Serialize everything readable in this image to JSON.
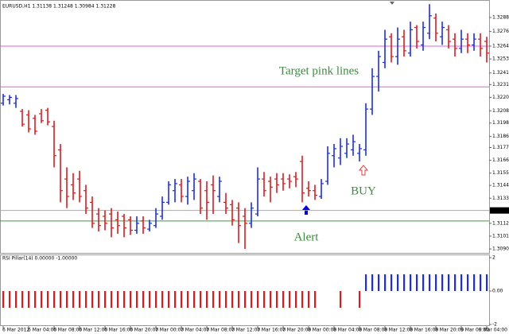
{
  "chart_data": [
    {
      "type": "ohlc",
      "title": "EURUSD,H1 1.31138 1.31248 1.30984 1.31228",
      "categories": [
        "6 Mar 2012",
        null,
        null,
        null,
        "6 Mar 04:00",
        null,
        null,
        null,
        "6 Mar 08:00",
        null,
        null,
        null,
        "6 Mar 12:00",
        null,
        null,
        null,
        "6 Mar 16:00",
        null,
        null,
        null,
        "6 Mar 20:00",
        null,
        null,
        null,
        "7 Mar 00:00",
        null,
        null,
        null,
        "7 Mar 04:00",
        null,
        null,
        null,
        "7 Mar 08:00",
        null,
        null,
        null,
        "7 Mar 12:00",
        null,
        null,
        null,
        "7 Mar 16:00",
        null,
        null,
        null,
        "7 Mar 20:00",
        null,
        null,
        null,
        "8 Mar 00:00",
        null,
        null,
        null,
        "8 Mar 04:00",
        null,
        null,
        null,
        "8 Mar 08:00",
        null,
        null,
        null,
        "8 Mar 12:00",
        null,
        null,
        null,
        "8 Mar 16:00",
        null,
        null,
        null,
        "8 Mar 20:00",
        null,
        null,
        null,
        "9 Mar 00:00",
        null,
        null,
        null,
        "9 Mar 04:00"
      ],
      "ohlc": [
        [
          1.3215,
          1.3223,
          1.3213,
          1.3221
        ],
        [
          1.3218,
          1.3222,
          1.3214,
          1.322
        ],
        [
          1.3215,
          1.3222,
          1.3211,
          1.3219
        ],
        [
          1.3208,
          1.321,
          1.3195,
          1.3197
        ],
        [
          1.3205,
          1.3209,
          1.319,
          1.3193
        ],
        [
          1.3202,
          1.3205,
          1.3188,
          1.3191
        ],
        [
          1.3206,
          1.321,
          1.3198,
          1.32
        ],
        [
          1.3209,
          1.3211,
          1.3196,
          1.3199
        ],
        [
          1.3195,
          1.32,
          1.316,
          1.317
        ],
        [
          1.3175,
          1.318,
          1.313,
          1.314
        ],
        [
          1.315,
          1.316,
          1.3125,
          1.3135
        ],
        [
          1.3145,
          1.3155,
          1.3132,
          1.3138
        ],
        [
          1.315,
          1.3157,
          1.313,
          1.3135
        ],
        [
          1.314,
          1.3145,
          1.312,
          1.3125
        ],
        [
          1.313,
          1.3135,
          1.3108,
          1.3112
        ],
        [
          1.312,
          1.3125,
          1.3105,
          1.311
        ],
        [
          1.3118,
          1.3123,
          1.3106,
          1.3112
        ],
        [
          1.312,
          1.3125,
          1.31,
          1.3108
        ],
        [
          1.3115,
          1.3122,
          1.3103,
          1.311
        ],
        [
          1.3118,
          1.312,
          1.31,
          1.3108
        ],
        [
          1.3115,
          1.3118,
          1.3102,
          1.3106
        ],
        [
          1.3106,
          1.3118,
          1.3103,
          1.3112
        ],
        [
          1.3114,
          1.3118,
          1.3103,
          1.3108
        ],
        [
          1.3107,
          1.3115,
          1.3105,
          1.3112
        ],
        [
          1.311,
          1.3125,
          1.3108,
          1.312
        ],
        [
          1.3118,
          1.3135,
          1.3115,
          1.313
        ],
        [
          1.313,
          1.3148,
          1.3128,
          1.3145
        ],
        [
          1.314,
          1.315,
          1.313,
          1.3146
        ],
        [
          1.3145,
          1.315,
          1.313,
          1.3135
        ],
        [
          1.3135,
          1.3152,
          1.3128,
          1.3148
        ],
        [
          1.314,
          1.3155,
          1.3132,
          1.315
        ],
        [
          1.3148,
          1.315,
          1.312,
          1.3125
        ],
        [
          1.314,
          1.3148,
          1.3115,
          1.313
        ],
        [
          1.3145,
          1.3153,
          1.312,
          1.314
        ],
        [
          1.3135,
          1.3152,
          1.313,
          1.3148
        ],
        [
          1.313,
          1.3138,
          1.312,
          1.3125
        ],
        [
          1.3128,
          1.3132,
          1.311,
          1.3115
        ],
        [
          1.3125,
          1.313,
          1.3095,
          1.311
        ],
        [
          1.3118,
          1.3125,
          1.309,
          1.3112
        ],
        [
          1.3112,
          1.313,
          1.3108,
          1.3125
        ],
        [
          1.312,
          1.316,
          1.3118,
          1.315
        ],
        [
          1.315,
          1.3156,
          1.3135,
          1.314
        ],
        [
          1.3148,
          1.3152,
          1.313,
          1.3143
        ],
        [
          1.315,
          1.3155,
          1.3138,
          1.3145
        ],
        [
          1.315,
          1.3155,
          1.314,
          1.3146
        ],
        [
          1.315,
          1.3154,
          1.3142,
          1.3148
        ],
        [
          1.3152,
          1.3156,
          1.3143,
          1.315
        ],
        [
          1.3165,
          1.317,
          1.313,
          1.3138
        ],
        [
          1.3142,
          1.3148,
          1.3135,
          1.314
        ],
        [
          1.314,
          1.3145,
          1.3132,
          1.3136
        ],
        [
          1.3135,
          1.315,
          1.3133,
          1.3146
        ],
        [
          1.3148,
          1.3178,
          1.3145,
          1.3172
        ],
        [
          1.317,
          1.318,
          1.316,
          1.3176
        ],
        [
          1.3168,
          1.3185,
          1.3162,
          1.3178
        ],
        [
          1.3172,
          1.3185,
          1.3168,
          1.318
        ],
        [
          1.3175,
          1.3188,
          1.317,
          1.3182
        ],
        [
          1.3172,
          1.318,
          1.3165,
          1.3176
        ],
        [
          1.3175,
          1.3215,
          1.317,
          1.321
        ],
        [
          1.321,
          1.3245,
          1.3205,
          1.3238
        ],
        [
          1.3238,
          1.326,
          1.3225,
          1.3255
        ],
        [
          1.325,
          1.3278,
          1.3245,
          1.327
        ],
        [
          1.3272,
          1.3275,
          1.325,
          1.3255
        ],
        [
          1.3255,
          1.328,
          1.3248,
          1.327
        ],
        [
          1.3272,
          1.3278,
          1.3255,
          1.326
        ],
        [
          1.3258,
          1.3285,
          1.3255,
          1.3278
        ],
        [
          1.328,
          1.3282,
          1.3262,
          1.3268
        ],
        [
          1.3265,
          1.3285,
          1.326,
          1.328
        ],
        [
          1.3275,
          1.33,
          1.327,
          1.329
        ],
        [
          1.3288,
          1.3292,
          1.3268,
          1.3275
        ],
        [
          1.3272,
          1.3285,
          1.3265,
          1.328
        ],
        [
          1.3278,
          1.3282,
          1.3262,
          1.3268
        ],
        [
          1.327,
          1.3275,
          1.3255,
          1.3262
        ],
        [
          1.3262,
          1.3278,
          1.3258,
          1.327
        ],
        [
          1.327,
          1.3275,
          1.3258,
          1.3265
        ],
        [
          1.3265,
          1.3275,
          1.326,
          1.327
        ],
        [
          1.327,
          1.3275,
          1.3255,
          1.3262
        ],
        [
          1.3268,
          1.3272,
          1.325,
          1.3258
        ]
      ],
      "up_color": "#1a2cf0",
      "down_color": "#e3171c",
      "ylim": [
        1.30866,
        1.33015
      ],
      "yticks": [
        1.32885,
        1.32765,
        {
          "value": 1.3264,
          "label": "1.32640"
        },
        {
          "value": 1.3253,
          "label": "1.32530"
        },
        {
          "value": 1.3241,
          "label": "1.32410"
        },
        {
          "value": 1.3231,
          "label": "1.32310"
        },
        {
          "value": 1.322,
          "label": "1.32200"
        },
        1.32085,
        {
          "value": 1.3198,
          "label": "1.31980"
        },
        1.31865,
        {
          "value": 1.3177,
          "label": "1.31770"
        },
        {
          "value": 1.3166,
          "label": "1.31660"
        },
        {
          "value": 1.3155,
          "label": "1.31550"
        },
        1.31445,
        1.31335,
        {
          "value": 1.3112,
          "label": "1.31120"
        },
        {
          "value": 1.3101,
          "label": "1.31010"
        },
        {
          "value": 1.309,
          "label": "1.30900"
        }
      ],
      "hlines": [
        {
          "value": 1.3264,
          "color": "#e060e0"
        },
        {
          "value": 1.3229,
          "color": "#e060e0"
        },
        {
          "value": 1.3114,
          "color": "#3c9a3c"
        }
      ],
      "current_price": {
        "value": 1.3123,
        "label": "1.31230"
      },
      "annotations": [
        "Target pink lines",
        "BUY",
        "Alert"
      ]
    },
    {
      "type": "pillar",
      "title": "RSI Pillar(14) 0.00000 -1.00000",
      "values": [
        -1,
        -1,
        -1,
        -1,
        -1,
        -1,
        -1,
        -1,
        -1,
        -1,
        -1,
        -1,
        -1,
        -1,
        -1,
        -1,
        -1,
        -1,
        -1,
        -1,
        -1,
        -1,
        -1,
        -1,
        -1,
        -1,
        -1,
        -1,
        -1,
        -1,
        -1,
        -1,
        -1,
        -1,
        -1,
        -1,
        -1,
        -1,
        -1,
        -1,
        -1,
        -1,
        -1,
        -1,
        -1,
        -1,
        -1,
        -1,
        -1,
        -1,
        0,
        0,
        0,
        -1,
        0,
        0,
        -1,
        1,
        1,
        1,
        1,
        1,
        1,
        1,
        1,
        1,
        1,
        1,
        1,
        1,
        1,
        1,
        1,
        1,
        1,
        1,
        1
      ],
      "up_color": "#1a2cf0",
      "down_color": "#e3171c",
      "ylim": [
        -2,
        2
      ],
      "yticks": [
        2,
        {
          "value": 0,
          "label": "0.00"
        },
        -2
      ]
    }
  ]
}
